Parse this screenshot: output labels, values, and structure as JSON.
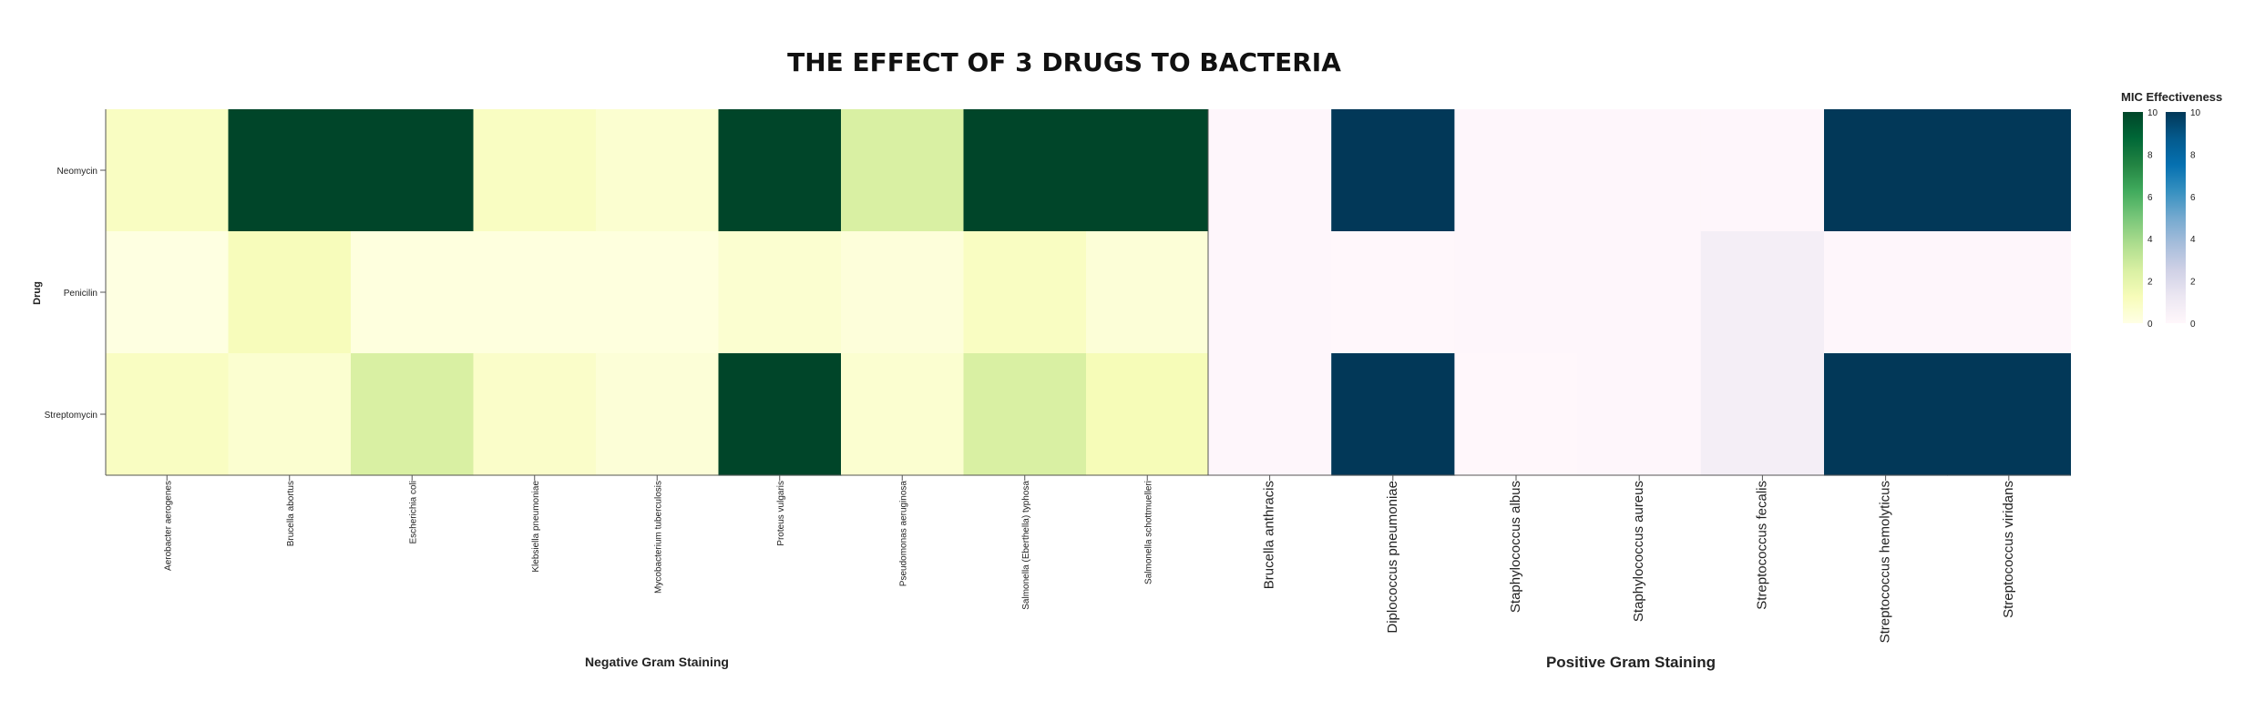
{
  "chart_data": {
    "type": "heatmap",
    "title": "THE EFFECT OF 3 DRUGS TO BACTERIA",
    "ylabel": "Drug",
    "drugs": [
      "Neomycin",
      "Penicilin",
      "Streptomycin"
    ],
    "legend_title": "MIC Effectiveness",
    "scale_range": [
      0,
      10
    ],
    "legend_ticks": [
      "0",
      "2",
      "4",
      "6",
      "8",
      "10"
    ],
    "panels": [
      {
        "name": "negative",
        "xlabel": "Negative Gram Staining",
        "colorscale": "YlGn",
        "bacteria": [
          "Aerobacter aerogenes",
          "Brucella abortus",
          "Escherichia coli",
          "Klebsiella pneumoniae",
          "Mycobacterium tuberculosis",
          "Proteus vulgaris",
          "Pseudomonas aeruginosa",
          "Salmonella (Eberthella) typhosa",
          "Salmonella schottmuelleri"
        ],
        "values": [
          [
            1.0,
            10,
            10,
            1.0,
            0.6,
            10,
            2.5,
            10,
            10
          ],
          [
            0.1,
            1.2,
            0.2,
            0.2,
            0.2,
            0.6,
            0.3,
            1.0,
            0.4
          ],
          [
            1.0,
            0.6,
            2.5,
            0.8,
            0.4,
            10,
            0.6,
            2.5,
            1.3
          ]
        ]
      },
      {
        "name": "positive",
        "xlabel": "Positive Gram Staining",
        "colorscale": "PuBu",
        "bacteria": [
          "Brucella anthracis",
          "Diplococcus pneumoniae",
          "Staphylococcus albus",
          "Staphylococcus aureus",
          "Streptococcus fecalis",
          "Streptococcus hemolyticus",
          "Streptococcus viridans"
        ],
        "values": [
          [
            0.05,
            10,
            0.05,
            0.05,
            0.05,
            10,
            10
          ],
          [
            0.05,
            0.02,
            0.05,
            0.05,
            0.7,
            0.05,
            0.05
          ],
          [
            0.05,
            10,
            0.02,
            0.05,
            0.7,
            10,
            10
          ]
        ]
      }
    ]
  }
}
